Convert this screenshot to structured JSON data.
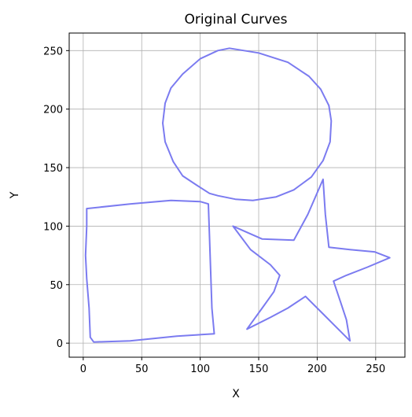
{
  "chart_data": {
    "type": "line",
    "title": "Original Curves",
    "xlabel": "X",
    "ylabel": "Y",
    "xlim": [
      -12,
      275
    ],
    "ylim": [
      -12,
      265
    ],
    "xticks": [
      0,
      50,
      100,
      150,
      200,
      250
    ],
    "yticks": [
      0,
      50,
      100,
      150,
      200,
      250
    ],
    "grid": true,
    "legend": "none",
    "line_color": "#7b7bf0",
    "series": [
      {
        "closed": true,
        "points": [
          [
            125,
            252
          ],
          [
            150,
            248
          ],
          [
            175,
            240
          ],
          [
            193,
            228
          ],
          [
            203,
            217
          ],
          [
            210,
            203
          ],
          [
            212,
            190
          ],
          [
            211,
            172
          ],
          [
            205,
            156
          ],
          [
            195,
            142
          ],
          [
            180,
            131
          ],
          [
            165,
            125
          ],
          [
            145,
            122
          ],
          [
            130,
            123
          ],
          [
            115,
            126
          ],
          [
            108,
            128
          ],
          [
            97,
            135
          ],
          [
            85,
            143
          ],
          [
            77,
            155
          ],
          [
            70,
            172
          ],
          [
            68,
            188
          ],
          [
            70,
            205
          ],
          [
            75,
            218
          ],
          [
            85,
            230
          ],
          [
            100,
            243
          ],
          [
            115,
            250
          ]
        ]
      },
      {
        "closed": true,
        "points": [
          [
            3,
            115
          ],
          [
            40,
            119
          ],
          [
            75,
            122
          ],
          [
            100,
            121
          ],
          [
            107,
            119
          ],
          [
            108,
            90
          ],
          [
            109,
            60
          ],
          [
            110,
            30
          ],
          [
            112,
            8
          ],
          [
            80,
            6
          ],
          [
            40,
            2
          ],
          [
            9,
            1
          ],
          [
            6,
            5
          ],
          [
            5,
            30
          ],
          [
            3,
            55
          ],
          [
            2,
            75
          ],
          [
            3,
            100
          ]
        ]
      },
      {
        "closed": true,
        "points": [
          [
            128,
            100
          ],
          [
            153,
            89
          ],
          [
            180,
            88
          ],
          [
            192,
            110
          ],
          [
            205,
            140
          ],
          [
            207,
            110
          ],
          [
            210,
            82
          ],
          [
            228,
            80
          ],
          [
            249,
            78
          ],
          [
            262,
            73
          ],
          [
            243,
            65
          ],
          [
            225,
            58
          ],
          [
            214,
            53
          ],
          [
            220,
            35
          ],
          [
            225,
            20
          ],
          [
            228,
            2
          ],
          [
            215,
            15
          ],
          [
            205,
            25
          ],
          [
            190,
            40
          ],
          [
            175,
            30
          ],
          [
            160,
            22
          ],
          [
            140,
            12
          ],
          [
            153,
            30
          ],
          [
            163,
            44
          ],
          [
            168,
            58
          ],
          [
            160,
            67
          ],
          [
            143,
            80
          ]
        ]
      }
    ]
  }
}
